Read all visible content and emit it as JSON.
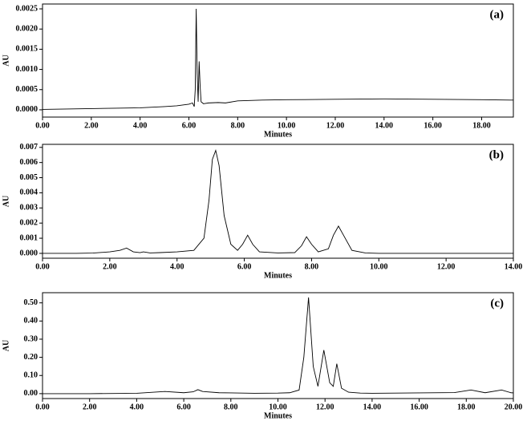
{
  "chart_data": [
    {
      "type": "line",
      "annotation": "(a)",
      "xlabel": "Minutes",
      "ylabel": "AU",
      "color": "#000000",
      "x": [
        0,
        1,
        2,
        3,
        4,
        5,
        5.5,
        6.0,
        6.15,
        6.22,
        6.26,
        6.3,
        6.34,
        6.38,
        6.42,
        6.46,
        6.5,
        6.6,
        6.8,
        7.2,
        7.5,
        8,
        9,
        10,
        12,
        14,
        16,
        18,
        19.3
      ],
      "values": [
        1e-05,
        2e-05,
        3e-05,
        4e-05,
        5e-05,
        8e-05,
        0.0001,
        0.00014,
        0.00017,
        8e-05,
        0.0005,
        0.0025,
        0.0009,
        0.0002,
        0.0012,
        0.0006,
        0.0002,
        0.00015,
        0.00017,
        0.00018,
        0.00017,
        0.00022,
        0.00024,
        0.00025,
        0.00026,
        0.00027,
        0.00026,
        0.00025,
        0.00024
      ],
      "xlim": [
        0,
        19.3
      ],
      "ylim": [
        -0.00018,
        0.00262
      ],
      "xticks": [
        {
          "value": 0,
          "label": "0.00"
        },
        {
          "value": 2,
          "label": "2.00"
        },
        {
          "value": 4,
          "label": "4.00"
        },
        {
          "value": 6,
          "label": "6.00"
        },
        {
          "value": 8,
          "label": "8.00"
        },
        {
          "value": 10,
          "label": "10.00"
        },
        {
          "value": 12,
          "label": "12.00"
        },
        {
          "value": 14,
          "label": "14.00"
        },
        {
          "value": 16,
          "label": "16.00"
        },
        {
          "value": 18,
          "label": "18.00"
        }
      ],
      "yticks": [
        {
          "value": 0,
          "label": "0.0000"
        },
        {
          "value": 0.0005,
          "label": "0.0005"
        },
        {
          "value": 0.001,
          "label": "0.0010"
        },
        {
          "value": 0.0015,
          "label": "0.0015"
        },
        {
          "value": 0.002,
          "label": "0.0020"
        },
        {
          "value": 0.0025,
          "label": "0.0025"
        }
      ]
    },
    {
      "type": "line",
      "annotation": "(b)",
      "xlabel": "Minutes",
      "ylabel": "AU",
      "color": "#000000",
      "x": [
        0,
        1,
        1.5,
        2,
        2.3,
        2.5,
        2.7,
        2.9,
        3.0,
        3.2,
        3.5,
        4,
        4.5,
        4.8,
        4.95,
        5.05,
        5.15,
        5.25,
        5.4,
        5.6,
        5.8,
        5.95,
        6.1,
        6.25,
        6.45,
        7,
        7.5,
        7.7,
        7.85,
        8.0,
        8.2,
        8.5,
        8.65,
        8.8,
        8.95,
        9.2,
        9.6,
        10,
        12,
        14
      ],
      "values": [
        0,
        0,
        2e-05,
        0.0001,
        0.0002,
        0.00035,
        0.0001,
        5e-05,
        0.0001,
        3e-05,
        5e-05,
        0.0001,
        0.0002,
        0.001,
        0.0035,
        0.0062,
        0.0068,
        0.0058,
        0.0025,
        0.0006,
        0.0002,
        0.0006,
        0.0012,
        0.0006,
        0.0001,
        3e-05,
        5e-05,
        0.0005,
        0.0011,
        0.0006,
        0.0001,
        0.0003,
        0.0012,
        0.0018,
        0.0012,
        0.0002,
        3e-05,
        0,
        0,
        0
      ],
      "xlim": [
        0,
        14
      ],
      "ylim": [
        -0.00032,
        0.0072
      ],
      "xticks": [
        {
          "value": 0,
          "label": "0.00"
        },
        {
          "value": 2,
          "label": "2.00"
        },
        {
          "value": 4,
          "label": "4.00"
        },
        {
          "value": 6,
          "label": "6.00"
        },
        {
          "value": 8,
          "label": "8.00"
        },
        {
          "value": 10,
          "label": "10.00"
        },
        {
          "value": 12,
          "label": "12.00"
        },
        {
          "value": 14,
          "label": "14.00"
        }
      ],
      "yticks": [
        {
          "value": 0,
          "label": "0.000"
        },
        {
          "value": 0.001,
          "label": "0.001"
        },
        {
          "value": 0.002,
          "label": "0.002"
        },
        {
          "value": 0.003,
          "label": "0.003"
        },
        {
          "value": 0.004,
          "label": "0.004"
        },
        {
          "value": 0.005,
          "label": "0.005"
        },
        {
          "value": 0.006,
          "label": "0.006"
        },
        {
          "value": 0.007,
          "label": "0.007"
        }
      ]
    },
    {
      "type": "line",
      "annotation": "(c)",
      "xlabel": "Minutes",
      "ylabel": "AU",
      "color": "#000000",
      "x": [
        0,
        2,
        4,
        5.2,
        6,
        6.4,
        6.6,
        6.8,
        7.5,
        8,
        9,
        10,
        10.5,
        10.9,
        11.1,
        11.3,
        11.5,
        11.7,
        11.95,
        12.2,
        12.35,
        12.5,
        12.7,
        13,
        13.5,
        14,
        16,
        17.5,
        18.2,
        18.8,
        19.5,
        19.9,
        20
      ],
      "values": [
        0,
        0,
        0.002,
        0.012,
        0.005,
        0.01,
        0.022,
        0.012,
        0.005,
        0.004,
        0.002,
        0.003,
        0.005,
        0.02,
        0.2,
        0.53,
        0.15,
        0.04,
        0.24,
        0.06,
        0.04,
        0.165,
        0.03,
        0.008,
        0.003,
        0.002,
        0.004,
        0.006,
        0.02,
        0.005,
        0.02,
        0.005,
        0.004
      ],
      "xlim": [
        0,
        20
      ],
      "ylim": [
        -0.027,
        0.556
      ],
      "xticks": [
        {
          "value": 0,
          "label": "0.00"
        },
        {
          "value": 2,
          "label": "2.00"
        },
        {
          "value": 4,
          "label": "4.00"
        },
        {
          "value": 6,
          "label": "6.00"
        },
        {
          "value": 8,
          "label": "8.00"
        },
        {
          "value": 10,
          "label": "10.00"
        },
        {
          "value": 12,
          "label": "12.00"
        },
        {
          "value": 14,
          "label": "14.00"
        },
        {
          "value": 16,
          "label": "16.00"
        },
        {
          "value": 18,
          "label": "18.00"
        },
        {
          "value": 20,
          "label": "20.00"
        }
      ],
      "yticks": [
        {
          "value": 0,
          "label": "0.00"
        },
        {
          "value": 0.1,
          "label": "0.10"
        },
        {
          "value": 0.2,
          "label": "0.20"
        },
        {
          "value": 0.3,
          "label": "0.30"
        },
        {
          "value": 0.4,
          "label": "0.40"
        },
        {
          "value": 0.5,
          "label": "0.50"
        }
      ]
    }
  ]
}
